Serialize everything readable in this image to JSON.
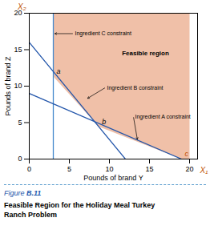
{
  "chart_data": {
    "type": "region",
    "xlabel": "Pounds of brand Y",
    "ylabel": "Pounds of brand Z",
    "x_symbol": "X₁",
    "y_symbol": "X₂",
    "symbol_color": "#c05000",
    "xlim": [
      0,
      21
    ],
    "ylim": [
      0,
      20
    ],
    "xticks": [
      0,
      5,
      10,
      15,
      20
    ],
    "yticks": [
      0,
      5,
      10,
      15,
      20
    ],
    "grid": false,
    "feasible_region": {
      "label": "Feasible region",
      "label_x": 14.5,
      "label_y": 14.5,
      "color": "#f0c0a8",
      "x": [
        3,
        3,
        20,
        20,
        19,
        8.67
      ],
      "y": [
        11.33,
        20,
        20,
        0,
        0,
        4.44
      ]
    },
    "constraints": [
      {
        "x": [
          3,
          3
        ],
        "y": [
          0,
          20
        ],
        "color": "#4488cc"
      },
      {
        "x": [
          0,
          12
        ],
        "y": [
          16,
          0
        ],
        "color": "#2255aa"
      },
      {
        "x": [
          0,
          19
        ],
        "y": [
          9,
          0
        ],
        "color": "#2255aa"
      }
    ],
    "points": [
      {
        "label": "a",
        "x": 3,
        "y": 11.33
      },
      {
        "label": "b",
        "x": 8.67,
        "y": 4.44
      },
      {
        "label": "c",
        "x": 19,
        "y": 0,
        "color": "#c05000"
      }
    ],
    "annotations": [
      {
        "text": "Ingredient C constraint",
        "x": 3.1,
        "y": 17.2,
        "text_x": 5.5,
        "text_y": 17.2
      },
      {
        "text": "Ingredient B constraint",
        "x": 7.2,
        "y": 8.27,
        "text_x": 9.5,
        "text_y": 9.8
      },
      {
        "text": "Ingredient A constraint",
        "x": 13.5,
        "y": 2.6,
        "text_x": 13.0,
        "text_y": 5.8
      }
    ],
    "caption": {
      "figure_label": "Figure B.11",
      "color": "#2255aa",
      "separator_color": "#5599cc",
      "lines": [
        "Feasible Region for the Holiday Meal Turkey",
        "Ranch Problem"
      ]
    }
  }
}
